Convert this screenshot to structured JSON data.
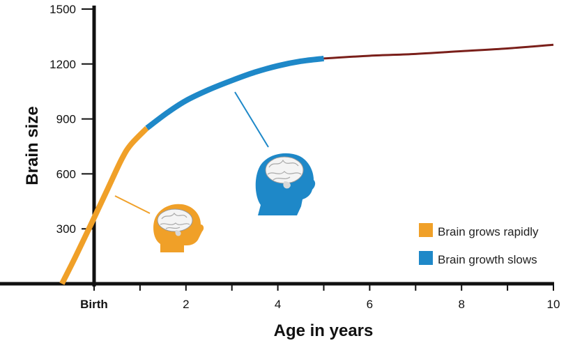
{
  "chart_data": {
    "type": "line",
    "title": "",
    "xlabel": "Age in years",
    "ylabel": "Brain size",
    "xlim": [
      -0.75,
      10
    ],
    "ylim": [
      0,
      1500
    ],
    "x_ticks": [
      {
        "value": 0,
        "label": "Birth"
      },
      {
        "value": 2,
        "label": "2"
      },
      {
        "value": 4,
        "label": "4"
      },
      {
        "value": 6,
        "label": "6"
      },
      {
        "value": 8,
        "label": "8"
      },
      {
        "value": 10,
        "label": "10"
      }
    ],
    "x_minor_ticks": [
      1,
      3,
      5,
      7,
      9
    ],
    "y_ticks": [
      300,
      600,
      900,
      1200,
      1500
    ],
    "grid": false,
    "legend_position": "bottom-right",
    "series": [
      {
        "name": "Brain grows rapidly",
        "color": "#F0A028",
        "x": [
          -0.7,
          -0.4,
          0,
          0.3,
          0.6,
          0.8,
          1.15
        ],
        "y": [
          0,
          150,
          360,
          520,
          680,
          760,
          850
        ]
      },
      {
        "name": "Brain growth slows",
        "color": "#1E88C8",
        "x": [
          1.15,
          1.6,
          2.0,
          2.5,
          3.0,
          3.5,
          4.0,
          4.5,
          5.0
        ],
        "y": [
          850,
          935,
          1000,
          1060,
          1110,
          1155,
          1190,
          1215,
          1230
        ]
      },
      {
        "color": "#7A1F1A",
        "x": [
          5.0,
          6,
          7,
          8,
          9,
          10
        ],
        "y": [
          1230,
          1245,
          1255,
          1270,
          1285,
          1305
        ]
      }
    ],
    "annotations": [
      {
        "icon": "infant-head-icon",
        "color": "#F0A028",
        "points_to_x": 0.4
      },
      {
        "icon": "child-head-icon",
        "color": "#1E88C8",
        "points_to_x": 3.0
      }
    ]
  }
}
